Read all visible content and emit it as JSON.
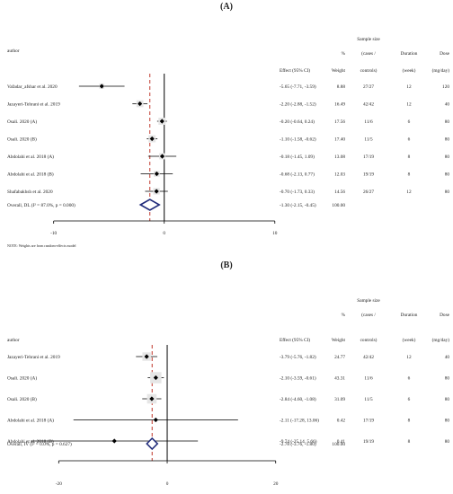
{
  "chart_data": [
    {
      "type": "forest",
      "title": "(A)",
      "columns": {
        "author": "author",
        "effect": "Effect (95% CI)",
        "weight_line1": "%",
        "weight_line2": "Weight",
        "sample_group": "Sample size",
        "sample_line1": "(cases /",
        "sample_line2": "controls)",
        "duration_line1": "Duration",
        "duration_line2": "(week)",
        "dose_line1": "Dose",
        "dose_line2": "(mg/day)"
      },
      "rows": [
        {
          "author": "Vafadar_afshar et al. 2020",
          "est": -5.65,
          "lo": -7.71,
          "hi": -3.59,
          "effect_text": "-5.65 (-7.71, -3.59)",
          "weight": "8.88",
          "sample": "27/27",
          "duration": "12",
          "dose": "120"
        },
        {
          "author": "Jazayeri-Tehrani et al. 2019",
          "est": -2.2,
          "lo": -2.88,
          "hi": -1.52,
          "effect_text": "-2.20 (-2.88, -1.52)",
          "weight": "16.49",
          "sample": "42/42",
          "duration": "12",
          "dose": "40"
        },
        {
          "author": "Osali. 2020 (A)",
          "est": -0.2,
          "lo": -0.64,
          "hi": 0.24,
          "effect_text": "-0.20 (-0.64, 0.24)",
          "weight": "17.56",
          "sample": "11/6",
          "duration": "6",
          "dose": "80"
        },
        {
          "author": "Osali. 2020 (B)",
          "est": -1.1,
          "lo": -1.58,
          "hi": -0.62,
          "effect_text": "-1.10 (-1.58, -0.62)",
          "weight": "17.40",
          "sample": "11/5",
          "duration": "6",
          "dose": "80"
        },
        {
          "author": "Abdolahi et al. 2018 (A)",
          "est": -0.18,
          "lo": -1.45,
          "hi": 1.09,
          "effect_text": "-0.18 (-1.45, 1.09)",
          "weight": "13.08",
          "sample": "17/19",
          "duration": "8",
          "dose": "80"
        },
        {
          "author": "Abdolahi et al. 2018 (B)",
          "est": -0.68,
          "lo": -2.13,
          "hi": 0.77,
          "effect_text": "-0.68 (-2.13, 0.77)",
          "weight": "12.03",
          "sample": "19/19",
          "duration": "8",
          "dose": "80"
        },
        {
          "author": "Shafabakhsh et al. 2020",
          "est": -0.7,
          "lo": -1.73,
          "hi": 0.33,
          "effect_text": "-0.70 (-1.73, 0.33)",
          "weight": "14.56",
          "sample": "26/27",
          "duration": "12",
          "dose": "80"
        }
      ],
      "overall": {
        "label": "Overall, DL (I² = 87.0%, p = 0.000)",
        "est": -1.3,
        "lo": -2.15,
        "hi": -0.45,
        "effect_text": "-1.30 (-2.15, -0.45)",
        "weight": "100.00"
      },
      "xticks": [
        -10,
        0,
        10
      ],
      "xlim": [
        -14.2,
        14.0
      ],
      "note": "NOTE: Weights are from random-effects model"
    },
    {
      "type": "forest",
      "title": "(B)",
      "columns": {
        "author": "author",
        "effect": "Effect (95% CI)",
        "weight_line1": "%",
        "weight_line2": "Weight",
        "sample_group": "Sample size",
        "sample_line1": "(cases /",
        "sample_line2": "controls)",
        "duration_line1": "Duration",
        "duration_line2": "(week)",
        "dose_line1": "Dose",
        "dose_line2": "(mg/day)"
      },
      "rows": [
        {
          "author": "Jazayeri-Tehrani et al. 2019",
          "est": -3.79,
          "lo": -5.76,
          "hi": -1.82,
          "effect_text": "-3.79 (-5.76, -1.82)",
          "weight": "24.77",
          "sample": "42/42",
          "duration": "12",
          "dose": "40"
        },
        {
          "author": "Osali. 2020 (A)",
          "est": -2.1,
          "lo": -3.59,
          "hi": -0.61,
          "effect_text": "-2.10 (-3.59, -0.61)",
          "weight": "43.31",
          "sample": "11/6",
          "duration": "6",
          "dose": "80"
        },
        {
          "author": "Osali. 2020 (B)",
          "est": -2.84,
          "lo": -4.6,
          "hi": -1.08,
          "effect_text": "-2.84 (-4.60, -1.08)",
          "weight": "31.09",
          "sample": "11/5",
          "duration": "6",
          "dose": "80"
        },
        {
          "author": "Abdolahi et al. 2018 (A)",
          "est": -2.11,
          "lo": -17.28,
          "hi": 13.06,
          "effect_text": "-2.11 (-17.28, 13.06)",
          "weight": "0.42",
          "sample": "17/19",
          "duration": "8",
          "dose": "80"
        },
        {
          "author": "Abdolahi et al. 2018 (B)",
          "est": -9.74,
          "lo": -25.14,
          "hi": 5.66,
          "effect_text": "-9.74 (-25.14, 5.66)",
          "weight": "0.41",
          "sample": "19/19",
          "duration": "8",
          "dose": "80"
        }
      ],
      "overall": {
        "label": "Overall, IV (I² = 0.0%, p = 0.627)",
        "est": -2.78,
        "lo": -3.76,
        "hi": -1.8,
        "effect_text": "-2.78 (-3.76, -1.80)",
        "weight": "100.00"
      },
      "xticks": [
        -20,
        0,
        20
      ],
      "xlim": [
        -29.5,
        28.0
      ],
      "note": ""
    }
  ]
}
